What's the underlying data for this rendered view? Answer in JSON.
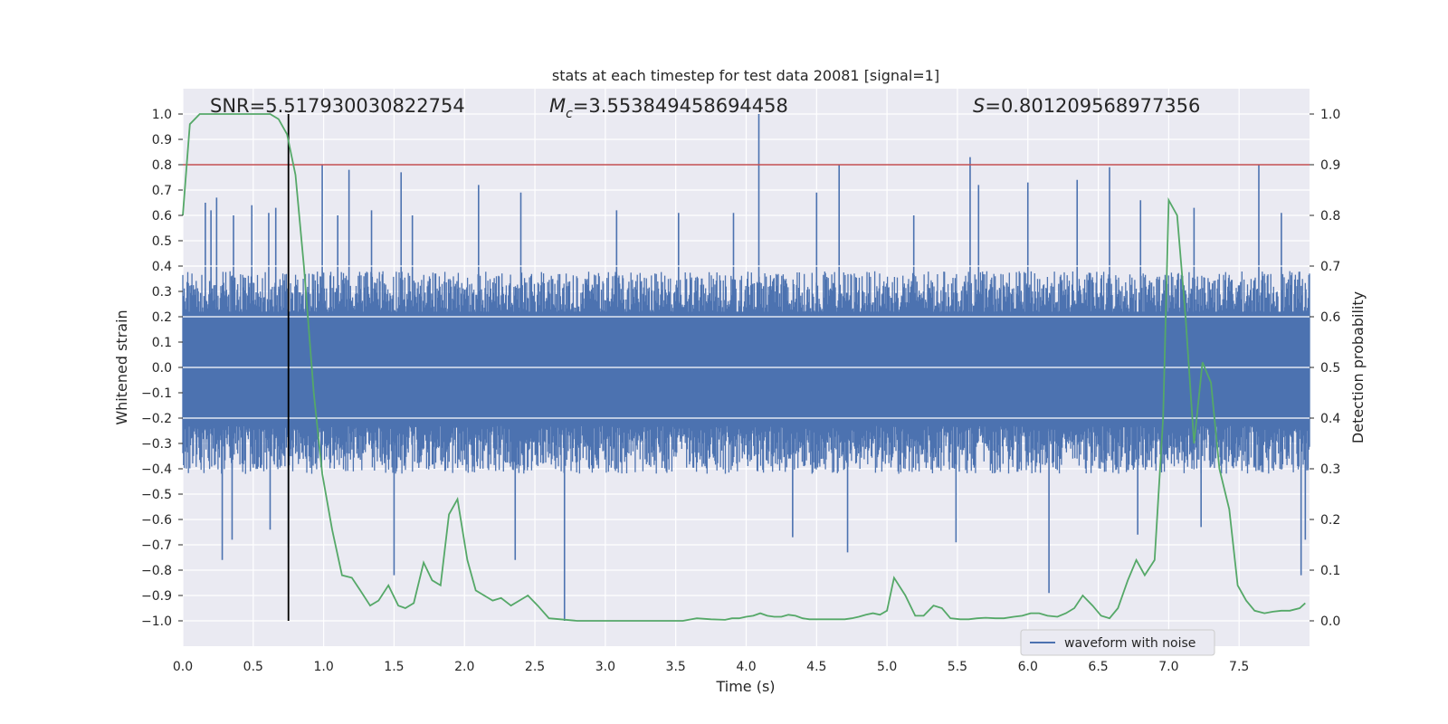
{
  "chart_data": {
    "type": "line",
    "title": "stats at each timestep for test data 20081 [signal=1]",
    "xlabel": "Time (s)",
    "ylabel": "Whitened strain",
    "y2label": "Detection probability",
    "xlim": [
      0.0,
      8.0
    ],
    "ylim": [
      -1.1,
      1.1
    ],
    "y2lim": [
      -0.05,
      1.05
    ],
    "xticks": [
      "0.0",
      "0.5",
      "1.0",
      "1.5",
      "2.0",
      "2.5",
      "3.0",
      "3.5",
      "4.0",
      "4.5",
      "5.0",
      "5.5",
      "6.0",
      "6.5",
      "7.0",
      "7.5"
    ],
    "yticks": [
      "1.0",
      "0.9",
      "0.8",
      "0.7",
      "0.6",
      "0.5",
      "0.4",
      "0.3",
      "0.2",
      "0.1",
      "0.0",
      "−0.1",
      "−0.2",
      "−0.3",
      "−0.4",
      "−0.5",
      "−0.6",
      "−0.7",
      "−0.8",
      "−0.9",
      "−1.0"
    ],
    "y2ticks": [
      "1.0",
      "0.9",
      "0.8",
      "0.7",
      "0.6",
      "0.5",
      "0.4",
      "0.3",
      "0.2",
      "0.1",
      "0.0"
    ],
    "grid": true,
    "legend": {
      "entries": [
        "waveform with noise"
      ],
      "placement": "lower-right"
    },
    "annotations": {
      "snr": "SNR=5.517930030822754",
      "mc_symbol": "M",
      "mc_sub": "c",
      "mc_value": "=3.553849458694458",
      "s_symbol": "S",
      "s_value": "=0.801209568977356"
    },
    "threshold": {
      "axis": "y2",
      "value": 0.9,
      "color": "#c44e52"
    },
    "vertical_marker": {
      "x": 0.75,
      "y_from": -1.0,
      "y_to": 1.0,
      "color": "#000000"
    },
    "series": [
      {
        "name": "waveform with noise",
        "axis": "y1",
        "color": "#4c72b0",
        "band": {
          "x_start": 0.0,
          "x_end": 8.0,
          "typical_max": 0.38,
          "typical_min": -0.42,
          "samples": 1600
        },
        "peaks": [
          {
            "x": 0.16,
            "y": 0.65
          },
          {
            "x": 0.2,
            "y": 0.62
          },
          {
            "x": 0.24,
            "y": 0.67
          },
          {
            "x": 0.36,
            "y": 0.6
          },
          {
            "x": 0.49,
            "y": 0.64
          },
          {
            "x": 0.61,
            "y": 0.61
          },
          {
            "x": 0.66,
            "y": 0.63
          },
          {
            "x": 0.99,
            "y": 0.8
          },
          {
            "x": 1.1,
            "y": 0.6
          },
          {
            "x": 1.18,
            "y": 0.78
          },
          {
            "x": 1.34,
            "y": 0.62
          },
          {
            "x": 1.55,
            "y": 0.77
          },
          {
            "x": 1.63,
            "y": 0.6
          },
          {
            "x": 2.1,
            "y": 0.72
          },
          {
            "x": 2.4,
            "y": 0.69
          },
          {
            "x": 3.08,
            "y": 0.62
          },
          {
            "x": 3.52,
            "y": 0.61
          },
          {
            "x": 3.91,
            "y": 0.61
          },
          {
            "x": 4.09,
            "y": 1.0
          },
          {
            "x": 4.5,
            "y": 0.69
          },
          {
            "x": 4.66,
            "y": 0.8
          },
          {
            "x": 5.19,
            "y": 0.6
          },
          {
            "x": 5.59,
            "y": 0.83
          },
          {
            "x": 5.65,
            "y": 0.72
          },
          {
            "x": 6.0,
            "y": 0.73
          },
          {
            "x": 6.35,
            "y": 0.74
          },
          {
            "x": 6.58,
            "y": 0.79
          },
          {
            "x": 6.8,
            "y": 0.66
          },
          {
            "x": 7.18,
            "y": 0.63
          },
          {
            "x": 7.64,
            "y": 0.8
          },
          {
            "x": 7.8,
            "y": 0.61
          }
        ],
        "troughs": [
          {
            "x": 0.28,
            "y": -0.76
          },
          {
            "x": 0.35,
            "y": -0.68
          },
          {
            "x": 0.62,
            "y": -0.64
          },
          {
            "x": 0.75,
            "y": -0.71
          },
          {
            "x": 1.5,
            "y": -0.82
          },
          {
            "x": 2.36,
            "y": -0.76
          },
          {
            "x": 2.71,
            "y": -1.0
          },
          {
            "x": 4.33,
            "y": -0.67
          },
          {
            "x": 4.72,
            "y": -0.73
          },
          {
            "x": 5.49,
            "y": -0.69
          },
          {
            "x": 6.15,
            "y": -0.89
          },
          {
            "x": 6.78,
            "y": -0.66
          },
          {
            "x": 7.23,
            "y": -0.63
          },
          {
            "x": 7.94,
            "y": -0.82
          },
          {
            "x": 7.97,
            "y": -0.68
          }
        ]
      },
      {
        "name": "",
        "axis": "y2",
        "color": "#55a868",
        "x": [
          0.0,
          0.05,
          0.12,
          0.2,
          0.3,
          0.4,
          0.5,
          0.62,
          0.68,
          0.74,
          0.8,
          0.86,
          0.93,
          0.99,
          1.06,
          1.13,
          1.2,
          1.26,
          1.33,
          1.39,
          1.46,
          1.53,
          1.58,
          1.64,
          1.71,
          1.77,
          1.83,
          1.89,
          1.95,
          2.02,
          2.08,
          2.14,
          2.2,
          2.26,
          2.33,
          2.39,
          2.45,
          2.52,
          2.6,
          2.8,
          3.0,
          3.2,
          3.4,
          3.55,
          3.65,
          3.75,
          3.85,
          3.9,
          3.95,
          4.0,
          4.05,
          4.1,
          4.15,
          4.2,
          4.25,
          4.3,
          4.35,
          4.4,
          4.45,
          4.5,
          4.55,
          4.6,
          4.65,
          4.7,
          4.75,
          4.8,
          4.85,
          4.9,
          4.95,
          5.0,
          5.05,
          5.13,
          5.2,
          5.26,
          5.33,
          5.39,
          5.45,
          5.52,
          5.58,
          5.64,
          5.7,
          5.77,
          5.83,
          5.9,
          5.96,
          6.02,
          6.08,
          6.14,
          6.21,
          6.27,
          6.33,
          6.39,
          6.46,
          6.52,
          6.58,
          6.64,
          6.71,
          6.77,
          6.83,
          6.9,
          6.96,
          7.0,
          7.06,
          7.12,
          7.18,
          7.24,
          7.3,
          7.36,
          7.43,
          7.49,
          7.55,
          7.61,
          7.68,
          7.74,
          7.8,
          7.86,
          7.93,
          7.97
        ],
        "y": [
          0.8,
          0.98,
          1.0,
          1.0,
          1.0,
          1.0,
          1.0,
          1.0,
          0.99,
          0.96,
          0.88,
          0.7,
          0.45,
          0.29,
          0.18,
          0.09,
          0.085,
          0.06,
          0.03,
          0.04,
          0.07,
          0.03,
          0.025,
          0.035,
          0.115,
          0.08,
          0.07,
          0.21,
          0.24,
          0.12,
          0.06,
          0.05,
          0.04,
          0.045,
          0.03,
          0.04,
          0.05,
          0.03,
          0.005,
          0.0,
          0.0,
          0.0,
          0.0,
          0.0,
          0.005,
          0.003,
          0.002,
          0.005,
          0.005,
          0.008,
          0.01,
          0.015,
          0.01,
          0.008,
          0.008,
          0.012,
          0.01,
          0.005,
          0.003,
          0.003,
          0.003,
          0.003,
          0.003,
          0.003,
          0.005,
          0.008,
          0.012,
          0.015,
          0.012,
          0.02,
          0.085,
          0.05,
          0.01,
          0.01,
          0.03,
          0.025,
          0.005,
          0.003,
          0.003,
          0.005,
          0.006,
          0.005,
          0.005,
          0.008,
          0.01,
          0.015,
          0.015,
          0.01,
          0.008,
          0.015,
          0.025,
          0.05,
          0.03,
          0.01,
          0.005,
          0.025,
          0.08,
          0.12,
          0.09,
          0.12,
          0.4,
          0.83,
          0.8,
          0.6,
          0.35,
          0.51,
          0.47,
          0.3,
          0.22,
          0.07,
          0.04,
          0.02,
          0.015,
          0.018,
          0.02,
          0.02,
          0.025,
          0.035
        ]
      }
    ]
  }
}
